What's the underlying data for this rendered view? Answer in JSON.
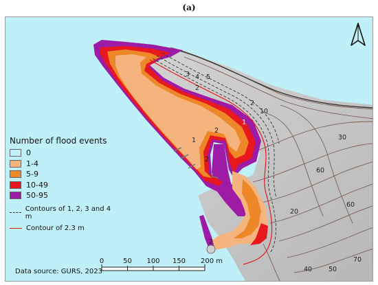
{
  "panel_label": "(a)",
  "legend": {
    "title": "Number of flood events",
    "items": [
      {
        "label": "0",
        "color": "#bfeff7"
      },
      {
        "label": "1-4",
        "color": "#f5b47e"
      },
      {
        "label": "5-9",
        "color": "#ee8728"
      },
      {
        "label": "10-49",
        "color": "#e8181f"
      },
      {
        "label": "50-95",
        "color": "#9e1ba6"
      }
    ],
    "contour_dashed": {
      "label": "Contours of 1, 2, 3 and 4 m",
      "color": "#333333"
    },
    "contour_red": {
      "label": "Contour of 2.3 m",
      "color": "#e31a1c"
    }
  },
  "source": "Data source: GURS, 2023",
  "scalebar": {
    "ticks": [
      "0",
      "50",
      "100",
      "150",
      "200 m"
    ]
  },
  "colors": {
    "sea": "#bfeff7",
    "land": "#c8c8c8",
    "contour": "#7a5c50"
  },
  "contour_labels": {
    "elevation": [
      "10",
      "20",
      "30",
      "40",
      "50",
      "60",
      "60",
      "70"
    ],
    "shallow": [
      "2",
      "3",
      "4",
      "5",
      "2",
      "2",
      "2",
      "2",
      "1",
      "1"
    ]
  },
  "north_arrow": "north-arrow-icon"
}
